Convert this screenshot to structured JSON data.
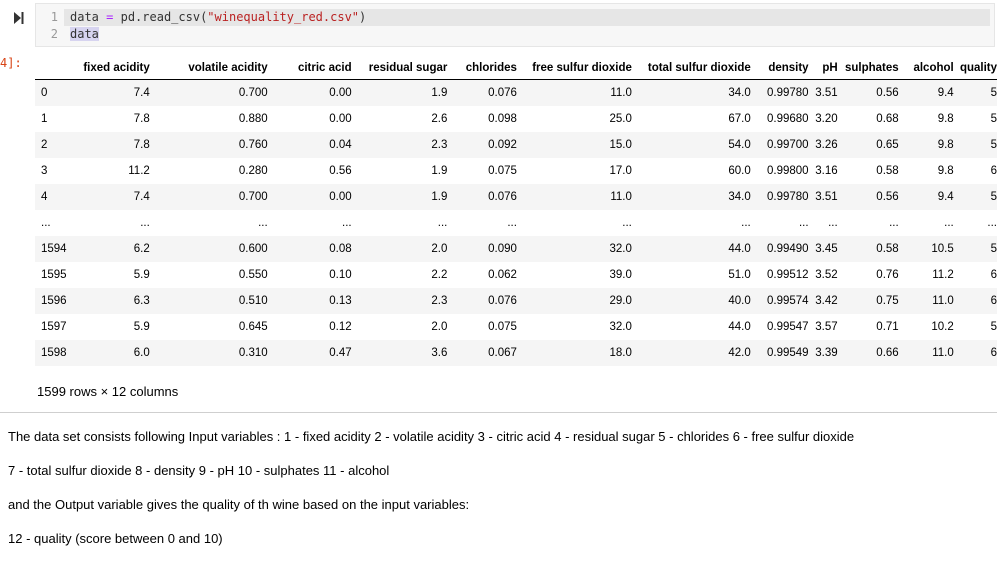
{
  "code_cell": {
    "run_icon": "step-run-icon",
    "lines": [
      {
        "num": "1",
        "var": "data",
        "op": " = ",
        "pre": "pd.read_csv(",
        "str": "\"winequality_red.csv\"",
        "post": ")"
      },
      {
        "num": "2",
        "text": "data"
      }
    ]
  },
  "output_prompt": "4]:",
  "dataframe": {
    "columns": [
      "fixed acidity",
      "volatile acidity",
      "citric acid",
      "residual sugar",
      "chlorides",
      "free sulfur dioxide",
      "total sulfur dioxide",
      "density",
      "pH",
      "sulphates",
      "alcohol",
      "quality"
    ],
    "rows": [
      {
        "index": "0",
        "cells": [
          "7.4",
          "0.700",
          "0.00",
          "1.9",
          "0.076",
          "11.0",
          "34.0",
          "0.99780",
          "3.51",
          "0.56",
          "9.4",
          "5"
        ]
      },
      {
        "index": "1",
        "cells": [
          "7.8",
          "0.880",
          "0.00",
          "2.6",
          "0.098",
          "25.0",
          "67.0",
          "0.99680",
          "3.20",
          "0.68",
          "9.8",
          "5"
        ]
      },
      {
        "index": "2",
        "cells": [
          "7.8",
          "0.760",
          "0.04",
          "2.3",
          "0.092",
          "15.0",
          "54.0",
          "0.99700",
          "3.26",
          "0.65",
          "9.8",
          "5"
        ]
      },
      {
        "index": "3",
        "cells": [
          "11.2",
          "0.280",
          "0.56",
          "1.9",
          "0.075",
          "17.0",
          "60.0",
          "0.99800",
          "3.16",
          "0.58",
          "9.8",
          "6"
        ]
      },
      {
        "index": "4",
        "cells": [
          "7.4",
          "0.700",
          "0.00",
          "1.9",
          "0.076",
          "11.0",
          "34.0",
          "0.99780",
          "3.51",
          "0.56",
          "9.4",
          "5"
        ]
      },
      {
        "index": "...",
        "cells": [
          "...",
          "...",
          "...",
          "...",
          "...",
          "...",
          "...",
          "...",
          "...",
          "...",
          "...",
          "..."
        ]
      },
      {
        "index": "1594",
        "cells": [
          "6.2",
          "0.600",
          "0.08",
          "2.0",
          "0.090",
          "32.0",
          "44.0",
          "0.99490",
          "3.45",
          "0.58",
          "10.5",
          "5"
        ]
      },
      {
        "index": "1595",
        "cells": [
          "5.9",
          "0.550",
          "0.10",
          "2.2",
          "0.062",
          "39.0",
          "51.0",
          "0.99512",
          "3.52",
          "0.76",
          "11.2",
          "6"
        ]
      },
      {
        "index": "1596",
        "cells": [
          "6.3",
          "0.510",
          "0.13",
          "2.3",
          "0.076",
          "29.0",
          "40.0",
          "0.99574",
          "3.42",
          "0.75",
          "11.0",
          "6"
        ]
      },
      {
        "index": "1597",
        "cells": [
          "5.9",
          "0.645",
          "0.12",
          "2.0",
          "0.075",
          "32.0",
          "44.0",
          "0.99547",
          "3.57",
          "0.71",
          "10.2",
          "5"
        ]
      },
      {
        "index": "1598",
        "cells": [
          "6.0",
          "0.310",
          "0.47",
          "3.6",
          "0.067",
          "18.0",
          "42.0",
          "0.99549",
          "3.39",
          "0.66",
          "11.0",
          "6"
        ]
      }
    ],
    "shape_note": "1599 rows × 12 columns"
  },
  "markdown": {
    "p1": "The data set consists following Input variables : 1 - fixed acidity 2 - volatile acidity 3 - citric acid 4 - residual sugar 5 - chlorides 6 - free sulfur dioxide",
    "p2": "7 - total sulfur dioxide 8 - density 9 - pH 10 - sulphates 11 - alcohol",
    "p3": "and the Output variable gives the quality of th wine based on the input variables:",
    "p4": "12 - quality (score between 0 and 10)"
  }
}
